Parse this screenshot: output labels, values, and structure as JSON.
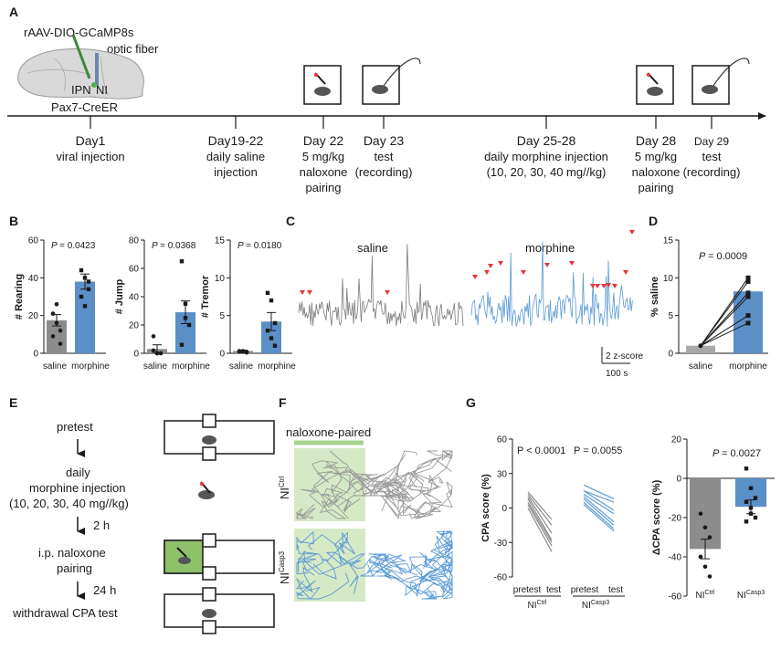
{
  "panel_a": {
    "label": "A",
    "brain": {
      "virus": "rAAV-DIO-GCaMP8s",
      "fiber": "optic fiber",
      "ipn": "IPN",
      "ni": "NI",
      "mouse_line": "Pax7-CreER"
    },
    "timeline": [
      {
        "day": "Day1",
        "desc": [
          "viral injection"
        ]
      },
      {
        "day": "Day19-22",
        "desc": [
          "daily saline",
          "injection"
        ]
      },
      {
        "day": "Day 22",
        "desc": [
          "5 mg/kg",
          "naloxone",
          "pairing"
        ]
      },
      {
        "day": "Day 23",
        "desc": [
          "test",
          "(recording)"
        ]
      },
      {
        "day": "Day 25-28",
        "desc": [
          "daily morphine injection",
          "(10, 20, 30, 40 mg//kg)"
        ]
      },
      {
        "day": "Day 28",
        "desc": [
          "5 mg/kg",
          "naloxone",
          "pairing"
        ]
      },
      {
        "day": "Day 29",
        "desc": [
          "test",
          "(recording)"
        ]
      }
    ]
  },
  "panel_b": {
    "label": "B",
    "xcats": [
      "saline",
      "morphine"
    ],
    "subplots": [
      {
        "ylabel": "# Rearing",
        "p": "= 0.0423",
        "yticks": [
          "60",
          "40",
          "20",
          "0"
        ]
      },
      {
        "ylabel": "# Jump",
        "p": "= 0.0368",
        "yticks": [
          "80",
          "60",
          "40",
          "20",
          "0"
        ]
      },
      {
        "ylabel": "# Tremor",
        "p": "= 0.0180",
        "yticks": [
          "15",
          "10",
          "5",
          "0"
        ]
      }
    ]
  },
  "panel_c": {
    "label": "C",
    "saline": "saline",
    "morphine": "morphine",
    "zscore": "2 z-score",
    "time": "100 s"
  },
  "panel_d": {
    "label": "D",
    "ylabel": "% saline",
    "p": "= 0.0009",
    "xcats": [
      "saline",
      "morphine"
    ],
    "yticks": [
      "15",
      "10",
      "5",
      "0"
    ]
  },
  "panel_e": {
    "label": "E",
    "steps": [
      "pretest",
      "daily",
      "morphine injection",
      "(10, 20, 30, 40 mg//kg)",
      "i.p. naloxone",
      "pairing",
      "withdrawal CPA test"
    ],
    "intervals": [
      "2 h",
      "24 h"
    ]
  },
  "panel_f": {
    "label": "F",
    "paired": "naloxone-paired",
    "row1": "NI",
    "row1_sup": "Ctrl",
    "row2": "NI",
    "row2_sup": "Casp3"
  },
  "panel_g": {
    "label": "G",
    "left": {
      "ylabel": "CPA score (%)",
      "p1": "P < 0.0001",
      "p2": "P = 0.0055",
      "yticks": [
        "60",
        "30",
        "0",
        "-30",
        "-60"
      ],
      "x": [
        "pretest",
        "test",
        "pretest",
        "test"
      ],
      "groups": [
        "NI",
        "Ctrl",
        "NI",
        "Casp3"
      ]
    },
    "right": {
      "ylabel": "ΔCPA score (%)",
      "p": "= 0.0027",
      "yticks": [
        "20",
        "0",
        "-20",
        "-40",
        "-60"
      ],
      "xcats": [
        "NI",
        "Ctrl",
        "NI",
        "Casp3"
      ]
    }
  },
  "colors": {
    "blue": "#5b8fc7",
    "gray": "#8c8c8c",
    "trace_gray": "#7a7a7a",
    "trace_blue": "#5b9bd5",
    "red": "#e8343a",
    "green_bg": "#d6e9c6"
  },
  "chart_data": [
    {
      "type": "bar",
      "categories": [
        "saline",
        "morphine"
      ],
      "ylabel": "# Rearing",
      "ylim": [
        0,
        60
      ],
      "values": [
        17.5,
        38
      ],
      "sem": [
        3,
        4
      ],
      "points": [
        [
          21,
          16,
          12,
          9,
          26,
          5
        ],
        [
          44,
          40,
          34,
          30,
          25,
          38
        ]
      ],
      "annotation": "P = 0.0423"
    },
    {
      "type": "bar",
      "categories": [
        "saline",
        "morphine"
      ],
      "ylabel": "# Jump",
      "ylim": [
        0,
        80
      ],
      "values": [
        3,
        29
      ],
      "sem": [
        3,
        8
      ],
      "points": [
        [
          12,
          0,
          0,
          2,
          0
        ],
        [
          65,
          35,
          20,
          6,
          25
        ]
      ],
      "annotation": "P = 0.0368"
    },
    {
      "type": "bar",
      "categories": [
        "saline",
        "morphine"
      ],
      "ylabel": "# Tremor",
      "ylim": [
        0,
        15
      ],
      "values": [
        0.3,
        4.2
      ],
      "sem": [
        0.1,
        1.2
      ],
      "points": [
        [
          0.2,
          0.3,
          0.1,
          0.3,
          0.2,
          0.2
        ],
        [
          8,
          7,
          4,
          3,
          2,
          1
        ]
      ],
      "annotation": "P = 0.0180"
    },
    {
      "type": "bar",
      "categories": [
        "saline",
        "morphine"
      ],
      "ylabel": "% saline",
      "ylim": [
        0,
        15
      ],
      "values": [
        1,
        8.2
      ],
      "pairs": [
        [
          1,
          10
        ],
        [
          1,
          9.5
        ],
        [
          1,
          8
        ],
        [
          1,
          7.5
        ],
        [
          1,
          5
        ],
        [
          1,
          4
        ]
      ],
      "annotation": "P = 0.0009"
    },
    {
      "type": "line",
      "ylabel": "CPA score (%)",
      "ylim": [
        -60,
        60
      ],
      "series": [
        {
          "pairs": [
            [
              14,
              -10
            ],
            [
              10,
              -22
            ],
            [
              8,
              -28
            ],
            [
              5,
              -30
            ],
            [
              3,
              -33
            ],
            [
              12,
              -15
            ],
            [
              0,
              -38
            ]
          ]
        },
        {
          "pairs": [
            [
              20,
              8
            ],
            [
              15,
              -2
            ],
            [
              12,
              -5
            ],
            [
              10,
              -12
            ],
            [
              8,
              -15
            ],
            [
              5,
              -18
            ],
            [
              15,
              5
            ],
            [
              3,
              -20
            ]
          ]
        }
      ],
      "annotations": [
        "P < 0.0001",
        "P = 0.0055"
      ]
    },
    {
      "type": "bar",
      "categories": [
        "NICtrl",
        "NICasp3"
      ],
      "ylabel": "ΔCPA score (%)",
      "ylim": [
        -60,
        20
      ],
      "values": [
        -36,
        -14.5
      ],
      "sem": [
        5,
        3.5
      ],
      "points": [
        [
          -18,
          -25,
          -30,
          -40,
          -45,
          -50,
          -40
        ],
        [
          5,
          -5,
          -10,
          -12,
          -18,
          -20,
          -22,
          -15
        ]
      ],
      "annotation": "P = 0.0027"
    }
  ]
}
